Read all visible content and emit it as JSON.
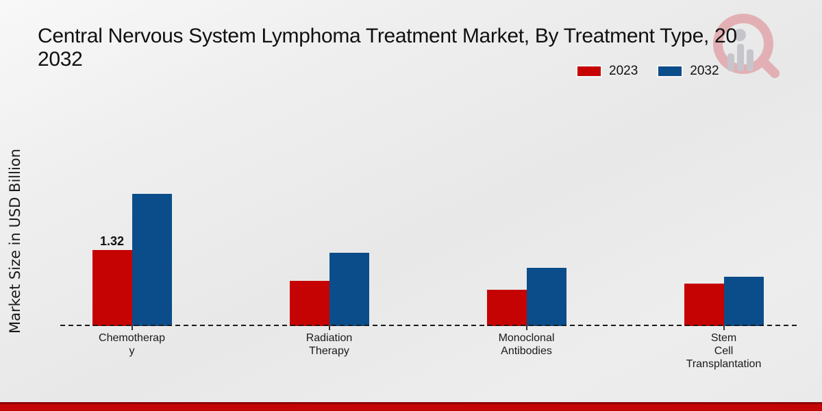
{
  "page": {
    "title_line1": "Central Nervous System Lymphoma Treatment Market, By Treatment Type, 20",
    "title_line2": "2032"
  },
  "chart_data": {
    "type": "bar",
    "title": "Central Nervous System Lymphoma Treatment Market, By Treatment Type, 20\n2032",
    "ylabel": "Market Size in USD Billion",
    "xlabel": "",
    "categories": [
      [
        "Chemotherap",
        "y"
      ],
      [
        "Radiation",
        "Therapy"
      ],
      [
        "Monoclonal",
        "Antibodies"
      ],
      [
        "Stem",
        "Cell",
        "Transplantation"
      ]
    ],
    "series": [
      {
        "name": "2023",
        "color": "#c60303",
        "values": [
          1.32,
          0.78,
          0.63,
          0.74
        ],
        "labels": [
          "1.32",
          "",
          "",
          ""
        ]
      },
      {
        "name": "2032",
        "color": "#0b4d8a",
        "values": [
          2.3,
          1.27,
          1.01,
          0.86
        ],
        "labels": [
          "",
          "",
          "",
          ""
        ]
      }
    ],
    "ylim": [
      0,
      2.5
    ],
    "grid": false,
    "axis_style": "dashed-zero-line",
    "legend_position": "top-right",
    "value_label_note": "only first 2023 bar is annotated"
  },
  "icons": {
    "watermark": "magnifier-bar-chart-logo"
  },
  "colors": {
    "bar_2023": "#c60303",
    "bar_2032": "#0b4d8a",
    "footer_strip": "#c30505",
    "footer_strip_dark": "#8f0505",
    "background": "#ececec",
    "text": "#111111"
  }
}
